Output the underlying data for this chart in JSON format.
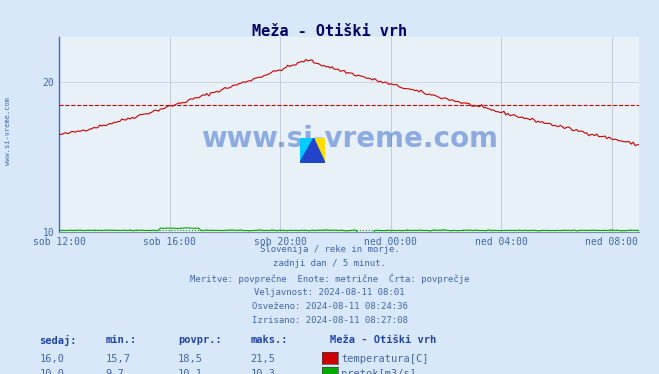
{
  "title": "Meža - Otiški vrh",
  "bg_color": "#d8e8f8",
  "plot_bg_color": "#e8f0f8",
  "grid_color": "#c0c8d8",
  "temp_color": "#cc0000",
  "flow_color": "#00aa00",
  "avg_line_color": "#cc0000",
  "ylim": [
    10,
    23
  ],
  "yticks": [
    10,
    20
  ],
  "xtick_labels": [
    "sob 12:00",
    "sob 16:00",
    "sob 20:00",
    "ned 00:00",
    "ned 04:00",
    "ned 08:00"
  ],
  "xtick_positions": [
    0,
    4,
    8,
    12,
    16,
    20
  ],
  "temp_avg": 18.5,
  "flow_avg": 10.1,
  "watermark": "www.si-vreme.com",
  "subtitle_lines": [
    "Slovenija / reke in morje.",
    "zadnji dan / 5 minut.",
    "Meritve: povprečne  Enote: metrične  Črta: povprečje",
    "Veljavnost: 2024-08-11 08:01",
    "Osveženo: 2024-08-11 08:24:36",
    "Izrisano: 2024-08-11 08:27:08"
  ],
  "table_headers": [
    "sedaj:",
    "min.:",
    "povpr.:",
    "maks.:"
  ],
  "temp_row": [
    16.0,
    15.7,
    18.5,
    21.5
  ],
  "flow_row": [
    10.0,
    9.7,
    10.1,
    10.3
  ],
  "legend_labels": [
    "temperatura[C]",
    "pretok[m3/s]"
  ],
  "legend_colors": [
    "#cc0000",
    "#00aa00"
  ],
  "station_label": "Meža - Otiški vrh",
  "left_label": "www.si-vreme.com",
  "total_points": 288
}
